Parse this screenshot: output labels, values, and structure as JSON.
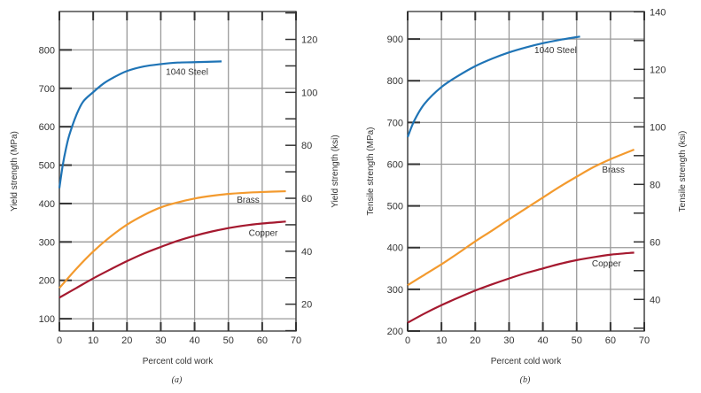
{
  "colors": {
    "steel": "#1f74b6",
    "brass": "#f39a2e",
    "copper": "#a5192f",
    "grid": "#9a9a9a",
    "axis": "#333333"
  },
  "chart_data": [
    {
      "type": "line",
      "caption": "(a)",
      "xlabel": "Percent cold work",
      "ylabel": "Yield strength (MPa)",
      "y2label": "Yield strength (ksi)",
      "xlim": [
        0,
        70
      ],
      "ylim": [
        68,
        900
      ],
      "xticks": [
        "0",
        "10",
        "20",
        "30",
        "40",
        "50",
        "60",
        "70"
      ],
      "yticks": [
        "100",
        "200",
        "300",
        "400",
        "500",
        "600",
        "700",
        "800"
      ],
      "y2ticks": [
        "20",
        "40",
        "60",
        "80",
        "100",
        "120"
      ],
      "grid": true,
      "series": [
        {
          "name": "1040 Steel",
          "color_key": "steel",
          "x": [
            0,
            1,
            2,
            3,
            5,
            7,
            10,
            13,
            16,
            20,
            25,
            30,
            35,
            40,
            48
          ],
          "y": [
            440,
            500,
            545,
            580,
            630,
            665,
            690,
            712,
            728,
            745,
            757,
            763,
            767,
            768,
            770
          ]
        },
        {
          "name": "Brass",
          "color_key": "brass",
          "x": [
            0,
            5,
            10,
            15,
            20,
            25,
            30,
            35,
            40,
            45,
            50,
            55,
            60,
            67
          ],
          "y": [
            180,
            230,
            275,
            313,
            345,
            370,
            390,
            403,
            413,
            420,
            425,
            428,
            430,
            432
          ]
        },
        {
          "name": "Copper",
          "color_key": "copper",
          "x": [
            0,
            5,
            10,
            15,
            20,
            25,
            30,
            35,
            40,
            45,
            50,
            55,
            60,
            67
          ],
          "y": [
            155,
            180,
            205,
            228,
            250,
            270,
            287,
            303,
            316,
            327,
            336,
            343,
            348,
            353
          ]
        }
      ]
    },
    {
      "type": "line",
      "caption": "(b)",
      "xlabel": "Percent cold work",
      "ylabel": "Tensile strength (MPa)",
      "y2label": "Tensile strength (ksi)",
      "xlim": [
        0,
        70
      ],
      "ylim": [
        200,
        966
      ],
      "xticks": [
        "0",
        "10",
        "20",
        "30",
        "40",
        "50",
        "60",
        "70"
      ],
      "yticks": [
        "200",
        "300",
        "400",
        "500",
        "600",
        "700",
        "800",
        "900"
      ],
      "y2ticks": [
        "40",
        "60",
        "80",
        "100",
        "120",
        "140"
      ],
      "grid": true,
      "series": [
        {
          "name": "1040 Steel",
          "color_key": "steel",
          "x": [
            0,
            2,
            5,
            10,
            15,
            20,
            25,
            30,
            35,
            40,
            45,
            51
          ],
          "y": [
            665,
            705,
            745,
            785,
            812,
            835,
            853,
            868,
            880,
            890,
            898,
            906
          ]
        },
        {
          "name": "Brass",
          "color_key": "brass",
          "x": [
            0,
            5,
            10,
            15,
            20,
            25,
            30,
            35,
            40,
            45,
            50,
            55,
            60,
            67
          ],
          "y": [
            310,
            335,
            360,
            387,
            415,
            441,
            468,
            494,
            520,
            546,
            570,
            593,
            612,
            635
          ]
        },
        {
          "name": "Copper",
          "color_key": "copper",
          "x": [
            0,
            5,
            10,
            15,
            20,
            25,
            30,
            35,
            40,
            45,
            50,
            55,
            60,
            67
          ],
          "y": [
            220,
            242,
            262,
            280,
            297,
            312,
            326,
            339,
            350,
            361,
            370,
            377,
            383,
            388
          ]
        }
      ]
    }
  ]
}
